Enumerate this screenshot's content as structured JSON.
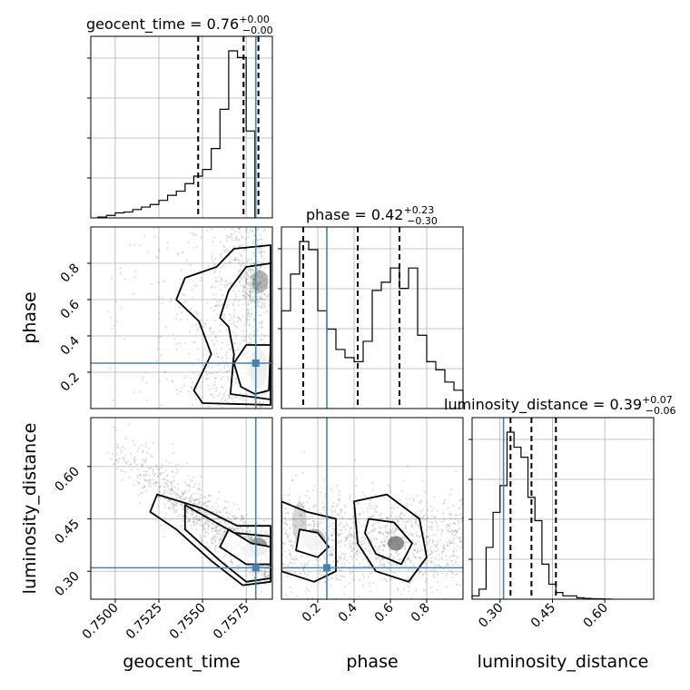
{
  "parameters": [
    "geocent_time",
    "phase",
    "luminosity_distance"
  ],
  "titles": {
    "geocent_time": {
      "name": "geocent_time",
      "median": "0.76",
      "plus": "+0.00",
      "minus": "−0.00"
    },
    "phase": {
      "name": "phase",
      "median": "0.42",
      "plus": "+0.23",
      "minus": "−0.30"
    },
    "luminosity_distance": {
      "name": "luminosity_distance",
      "median": "0.39",
      "plus": "+0.07",
      "minus": "−0.06"
    }
  },
  "axis_labels": {
    "geocent_time": "geocent_time",
    "phase": "phase",
    "luminosity_distance": "luminosity_distance"
  },
  "colors": {
    "truth": "#4682b4",
    "hist": "#000000",
    "grid": "#b0b0b0",
    "scatter": "#808080"
  },
  "chart_data": {
    "type": "corner",
    "grid": true,
    "ranges": {
      "geocent_time": [
        0.7486,
        0.759
      ],
      "phase": [
        0.0,
        1.0
      ],
      "luminosity_distance": [
        0.22,
        0.74
      ]
    },
    "truths": {
      "geocent_time": 0.75805,
      "phase": 0.25,
      "luminosity_distance": 0.31
    },
    "quantiles": {
      "geocent_time": [
        0.75475,
        0.75735,
        0.7582
      ],
      "phase": [
        0.12,
        0.42,
        0.65
      ],
      "luminosity_distance": [
        0.33,
        0.39,
        0.46
      ]
    },
    "ticks": {
      "geocent_time": [
        "0.7500",
        "0.7525",
        "0.7550",
        "0.7575"
      ],
      "phase": [
        "0.2",
        "0.4",
        "0.6",
        "0.8"
      ],
      "luminosity_distance": [
        "0.30",
        "0.45",
        "0.60"
      ]
    },
    "marginals": {
      "geocent_time": {
        "edges_start": 0.749,
        "bin_width": 0.0005,
        "counts": [
          0.5,
          1.5,
          3.0,
          3.5,
          5.0,
          6.5,
          8.0,
          10.5,
          13.5,
          16.0,
          20.5,
          25.0,
          29.0,
          41.5,
          65.0,
          100.0,
          96.0,
          52.0
        ]
      },
      "phase": {
        "edges_start": 0.0,
        "bin_width": 0.05,
        "counts": [
          48,
          66,
          82,
          78,
          48,
          39,
          29,
          25,
          23,
          33,
          58,
          62,
          69,
          59,
          69,
          36,
          23,
          19,
          13,
          9
        ]
      },
      "luminosity_distance": {
        "edges_start": 0.22,
        "bin_width": 0.02,
        "counts": [
          2,
          6,
          31,
          52,
          68,
          100,
          91,
          85,
          61,
          47,
          21,
          9,
          4,
          2,
          2,
          0.8,
          0.5,
          0.3,
          0.2,
          0.1
        ]
      }
    },
    "pairs": [
      {
        "x": "geocent_time",
        "y": "phase"
      },
      {
        "x": "geocent_time",
        "y": "luminosity_distance"
      },
      {
        "x": "phase",
        "y": "luminosity_distance"
      }
    ]
  }
}
